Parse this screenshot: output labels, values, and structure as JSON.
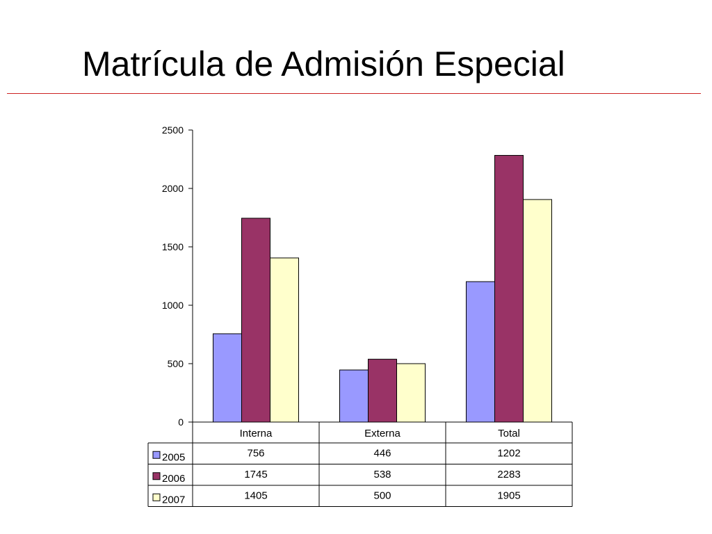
{
  "slide": {
    "title": "Matrícula de Admisión Especial"
  },
  "colors": {
    "title_rule": "#cc2222"
  },
  "chart_data": {
    "type": "bar",
    "categories": [
      "Interna",
      "Externa",
      "Total"
    ],
    "series": [
      {
        "name": "2005",
        "values": [
          756,
          446,
          1202
        ],
        "color": "#9999ff"
      },
      {
        "name": "2006",
        "values": [
          1745,
          538,
          2283
        ],
        "color": "#993366"
      },
      {
        "name": "2007",
        "values": [
          1405,
          500,
          1905
        ],
        "color": "#ffffcc"
      }
    ],
    "ylim": [
      0,
      2500
    ],
    "yticks": [
      0,
      500,
      1000,
      1500,
      2000,
      2500
    ],
    "grid": false,
    "legend": "data-table-below",
    "data_table": true
  }
}
